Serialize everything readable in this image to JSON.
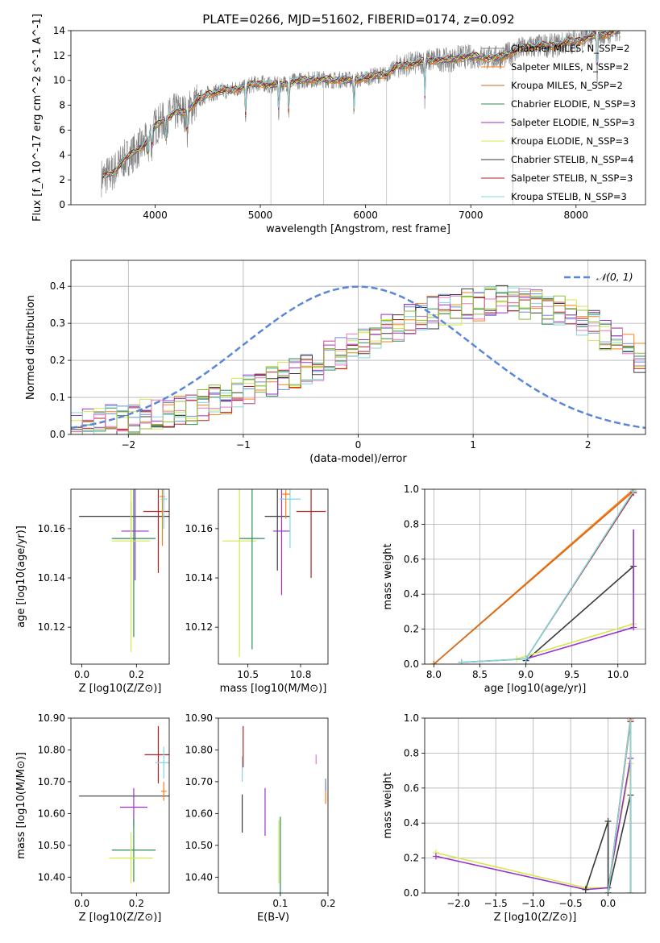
{
  "chart_data": [
    {
      "id": "spectrum",
      "type": "line",
      "title": "PLATE=0266, MJD=51602, FIBERID=0174, z=0.092",
      "xlabel": "wavelength [Angstrom, rest frame]",
      "ylabel": "Flux [f_λ 10^-17 erg cm^-2 s^-1 A^-1]",
      "xlim": [
        3200,
        8660
      ],
      "ylim": [
        0,
        14
      ],
      "xticks": [
        4000,
        5000,
        6000,
        7000,
        8000
      ],
      "yticks": [
        0,
        2,
        4,
        6,
        8,
        10,
        12,
        14
      ],
      "legend_position": "right",
      "continuum": {
        "x": [
          3500,
          3600,
          3700,
          3800,
          3900,
          4000,
          4100,
          4200,
          4300,
          4400,
          4500,
          4600,
          4700,
          4800,
          4900,
          5000,
          5100,
          5200,
          5300,
          5400,
          5500,
          5600,
          5700,
          5800,
          5900,
          6000,
          6100,
          6200,
          6300,
          6400,
          6500,
          6600,
          6700,
          6800,
          6900,
          7000,
          7100,
          7200,
          7300,
          7400,
          7500,
          7600,
          7700,
          7800,
          7900,
          8000,
          8100,
          8200,
          8300,
          8400
        ],
        "y": [
          2.2,
          2.6,
          3.6,
          4.2,
          4.9,
          6.3,
          6.9,
          7.5,
          7.4,
          8.4,
          8.9,
          9.1,
          9.2,
          9.4,
          9.6,
          9.8,
          9.6,
          9.7,
          9.9,
          10.0,
          10.1,
          10.1,
          10.0,
          10.1,
          10.0,
          10.2,
          10.4,
          10.5,
          11.1,
          11.3,
          11.4,
          11.6,
          11.7,
          11.6,
          11.9,
          11.9,
          11.9,
          11.8,
          11.9,
          12.3,
          12.6,
          12.7,
          12.8,
          12.8,
          13.0,
          13.2,
          13.4,
          13.6,
          13.8,
          14.0
        ]
      },
      "data_series_color": "#808080",
      "model_series": [
        {
          "name": "Chabrier MILES, N_SSP=2",
          "color": "#808080"
        },
        {
          "name": "Salpeter MILES, N_SSP=2",
          "color": "#ff7f0e"
        },
        {
          "name": "Kroupa MILES, N_SSP=2",
          "color": "#d2691e"
        },
        {
          "name": "Chabrier ELODIE, N_SSP=3",
          "color": "#2e8b57"
        },
        {
          "name": "Salpeter ELODIE, N_SSP=3",
          "color": "#9932cc"
        },
        {
          "name": "Kroupa ELODIE, N_SSP=3",
          "color": "#d4e84c"
        },
        {
          "name": "Chabrier STELIB, N_SSP=4",
          "color": "#3a3a3a"
        },
        {
          "name": "Salpeter STELIB, N_SSP=3",
          "color": "#b22222"
        },
        {
          "name": "Kroupa STELIB, N_SSP=3",
          "color": "#7fd6e0"
        }
      ],
      "absorption_lines": [
        3934,
        3969,
        4102,
        4304,
        4861,
        5175,
        5270,
        5890,
        6563,
        8200
      ],
      "masked_spikes": [
        5100,
        5600,
        6200,
        6800,
        7400
      ]
    },
    {
      "id": "residuals",
      "type": "histogram",
      "xlabel": "(data-model)/error",
      "ylabel": "Normed distribution",
      "xlim": [
        -2.5,
        2.5
      ],
      "ylim": [
        0,
        0.47
      ],
      "xticks": [
        -2,
        -1,
        0,
        1,
        2
      ],
      "yticks": [
        0.0,
        0.1,
        0.2,
        0.3,
        0.4
      ],
      "grid": true,
      "legend_position": "top-right",
      "gaussian": {
        "name": "𝒩(0, 1)",
        "mean": 0,
        "sigma": 1,
        "color": "#5b87d8"
      },
      "bin_edges_start": -2.5,
      "bin_width": 0.1,
      "base_profile": [
        0.03,
        0.03,
        0.03,
        0.04,
        0.04,
        0.04,
        0.05,
        0.05,
        0.06,
        0.06,
        0.07,
        0.08,
        0.09,
        0.1,
        0.11,
        0.12,
        0.13,
        0.14,
        0.15,
        0.16,
        0.18,
        0.19,
        0.21,
        0.22,
        0.24,
        0.25,
        0.27,
        0.28,
        0.29,
        0.31,
        0.32,
        0.33,
        0.34,
        0.34,
        0.35,
        0.35,
        0.36,
        0.36,
        0.36,
        0.35,
        0.35,
        0.34,
        0.33,
        0.32,
        0.31,
        0.29,
        0.27,
        0.25,
        0.23,
        0.21
      ],
      "series_colors": [
        "#6a8fd6",
        "#ff7f0e",
        "#2e8b57",
        "#9932cc",
        "#d4e84c",
        "#3a3a3a",
        "#b22222",
        "#7fd6e0",
        "#e377c2",
        "#8fbc3f"
      ]
    },
    {
      "id": "z-age",
      "type": "errorbar",
      "xlabel": "Z [log10(Z/Z⊙)]",
      "ylabel": "age  [log10(age/yr)]",
      "xlim": [
        -0.04,
        0.32
      ],
      "ylim": [
        10.105,
        10.176
      ],
      "xticks": [
        0.0,
        0.2
      ],
      "yticks": [
        10.12,
        10.14,
        10.16
      ],
      "points": [
        {
          "x": 0.18,
          "y": 10.165,
          "xerr": 0.19,
          "yerr": 0.006,
          "color": "#3a3a3a"
        },
        {
          "x": 0.195,
          "y": 10.159,
          "xerr": 0.05,
          "yerr": 0.02,
          "color": "#9932cc"
        },
        {
          "x": 0.19,
          "y": 10.156,
          "xerr": 0.08,
          "yerr": 0.04,
          "color": "#2e8b57"
        },
        {
          "x": 0.18,
          "y": 10.155,
          "xerr": 0.07,
          "yerr": 0.045,
          "color": "#d4e84c"
        },
        {
          "x": 0.28,
          "y": 10.167,
          "xerr": 0.055,
          "yerr": 0.025,
          "color": "#b22222"
        },
        {
          "x": 0.295,
          "y": 10.173,
          "xerr": 0.01,
          "yerr": 0.02,
          "color": "#ff7f0e"
        },
        {
          "x": 0.3,
          "y": 10.172,
          "xerr": 0.012,
          "yerr": 0.012,
          "color": "#7fd6e0"
        }
      ]
    },
    {
      "id": "mass-age",
      "type": "errorbar",
      "xlabel": "mass [log10(M/M⊙)]",
      "ylabel": "",
      "xlim": [
        10.36,
        10.88
      ],
      "ylim": [
        10.105,
        10.176
      ],
      "xticks": [
        10.5,
        10.75
      ],
      "yticks": [
        10.12,
        10.14,
        10.16
      ],
      "points": [
        {
          "x": 10.46,
          "y": 10.155,
          "xerr": 0.08,
          "yerr": 0.047,
          "color": "#d4e84c"
        },
        {
          "x": 10.52,
          "y": 10.156,
          "xerr": 0.06,
          "yerr": 0.045,
          "color": "#2e8b57"
        },
        {
          "x": 10.64,
          "y": 10.165,
          "xerr": 0.06,
          "yerr": 0.022,
          "color": "#3a3a3a"
        },
        {
          "x": 10.66,
          "y": 10.159,
          "xerr": 0.04,
          "yerr": 0.026,
          "color": "#9932cc"
        },
        {
          "x": 10.7,
          "y": 10.172,
          "xerr": 0.05,
          "yerr": 0.02,
          "color": "#7fd6e0"
        },
        {
          "x": 10.68,
          "y": 10.174,
          "xerr": 0.02,
          "yerr": 0.01,
          "color": "#ff7f0e"
        },
        {
          "x": 10.8,
          "y": 10.167,
          "xerr": 0.07,
          "yerr": 0.027,
          "color": "#b22222"
        }
      ]
    },
    {
      "id": "age-weight",
      "type": "line",
      "xlabel": "age  [log10(age/yr)]",
      "ylabel": "mass weight",
      "xlim": [
        7.9,
        10.3
      ],
      "ylim": [
        0,
        1.0
      ],
      "xticks": [
        8.0,
        8.5,
        9.0,
        9.5,
        10.0
      ],
      "yticks": [
        0.0,
        0.2,
        0.4,
        0.6,
        0.8,
        1.0
      ],
      "grid": true,
      "series": [
        {
          "color": "#ff7f0e",
          "x": [
            8.0,
            10.17
          ],
          "y": [
            0.0,
            1.0
          ]
        },
        {
          "color": "#d2691e",
          "x": [
            8.0,
            10.17
          ],
          "y": [
            0.0,
            0.99
          ]
        },
        {
          "color": "#3a3a3a",
          "x": [
            9.0,
            10.17
          ],
          "y": [
            0.02,
            0.56
          ]
        },
        {
          "color": "#9932cc",
          "x": [
            9.0,
            10.17
          ],
          "y": [
            0.03,
            0.21
          ]
        },
        {
          "color": "#d4e84c",
          "x": [
            8.9,
            10.17
          ],
          "y": [
            0.03,
            0.23
          ]
        },
        {
          "color": "#b22222",
          "x": [
            8.3,
            9.0,
            10.17
          ],
          "y": [
            0.01,
            0.03,
            0.98
          ]
        },
        {
          "color": "#7fd6e0",
          "x": [
            8.3,
            9.0,
            10.17
          ],
          "y": [
            0.01,
            0.03,
            0.99
          ]
        }
      ],
      "vbars": [
        {
          "color": "#3a3a3a",
          "x": 10.17,
          "y0": 0.41,
          "y1": 0.56
        },
        {
          "color": "#d4e84c",
          "x": 10.17,
          "y0": 0.23,
          "y1": 0.74
        },
        {
          "color": "#9932cc",
          "x": 10.17,
          "y0": 0.21,
          "y1": 0.77
        }
      ]
    },
    {
      "id": "z-mass",
      "type": "errorbar",
      "xlabel": "Z [log10(Z/Z⊙)]",
      "ylabel": "mass [log10(M/M⊙)]",
      "xlim": [
        -0.04,
        0.32
      ],
      "ylim": [
        10.35,
        10.9
      ],
      "xticks": [
        0.0,
        0.2
      ],
      "yticks": [
        10.4,
        10.5,
        10.6,
        10.7,
        10.8,
        10.9
      ],
      "points": [
        {
          "x": 0.18,
          "y": 10.655,
          "xerr": 0.19,
          "yerr": 0.0,
          "color": "#3a3a3a"
        },
        {
          "x": 0.19,
          "y": 10.62,
          "xerr": 0.05,
          "yerr": 0.06,
          "color": "#9932cc"
        },
        {
          "x": 0.19,
          "y": 10.485,
          "xerr": 0.08,
          "yerr": 0.1,
          "color": "#2e8b57"
        },
        {
          "x": 0.18,
          "y": 10.46,
          "xerr": 0.08,
          "yerr": 0.08,
          "color": "#d4e84c"
        },
        {
          "x": 0.28,
          "y": 10.785,
          "xerr": 0.05,
          "yerr": 0.09,
          "color": "#b22222"
        },
        {
          "x": 0.3,
          "y": 10.76,
          "xerr": 0.03,
          "yerr": 0.05,
          "color": "#7fd6e0"
        },
        {
          "x": 0.3,
          "y": 10.67,
          "xerr": 0.01,
          "yerr": 0.03,
          "color": "#ff7f0e"
        }
      ]
    },
    {
      "id": "ebv-mass",
      "type": "errorbar",
      "xlabel": "E(B-V)",
      "ylabel": "",
      "xlim": [
        -0.03,
        0.2
      ],
      "ylim": [
        10.35,
        10.9
      ],
      "xticks": [
        0.1,
        0.2
      ],
      "yticks": [
        10.4,
        10.5,
        10.6,
        10.7,
        10.8,
        10.9
      ],
      "points": [
        {
          "x": 0.02,
          "y": 10.6,
          "xerr": 0.0,
          "yerr": 0.06,
          "color": "#3a3a3a"
        },
        {
          "x": 0.02,
          "y": 10.74,
          "xerr": 0.0,
          "yerr": 0.04,
          "color": "#7fd6e0"
        },
        {
          "x": 0.022,
          "y": 10.81,
          "xerr": 0.0,
          "yerr": 0.065,
          "color": "#b22222"
        },
        {
          "x": 0.068,
          "y": 10.605,
          "xerr": 0.0,
          "yerr": 0.075,
          "color": "#9932cc"
        },
        {
          "x": 0.097,
          "y": 10.48,
          "xerr": 0.0,
          "yerr": 0.1,
          "color": "#d4e84c"
        },
        {
          "x": 0.1,
          "y": 10.47,
          "xerr": 0.0,
          "yerr": 0.12,
          "color": "#2e8b57"
        },
        {
          "x": 0.175,
          "y": 10.77,
          "xerr": 0.0,
          "yerr": 0.015,
          "color": "#e377c2"
        },
        {
          "x": 0.195,
          "y": 10.665,
          "xerr": 0.0,
          "yerr": 0.035,
          "color": "#ff7f0e"
        },
        {
          "x": 0.195,
          "y": 10.69,
          "xerr": 0.0,
          "yerr": 0.02,
          "color": "#6a8fd6"
        }
      ]
    },
    {
      "id": "z-weight",
      "type": "line",
      "xlabel": "Z [log10(Z/Z⊙)]",
      "ylabel": "mass weight",
      "xlim": [
        -2.45,
        0.5
      ],
      "ylim": [
        0,
        1.0
      ],
      "xticks": [
        -2.0,
        -1.5,
        -1.0,
        -0.5,
        0.0
      ],
      "yticks": [
        0.0,
        0.2,
        0.4,
        0.6,
        0.8,
        1.0
      ],
      "grid": true,
      "series": [
        {
          "color": "#d4e84c",
          "x": [
            -2.3,
            -0.3,
            0.0,
            0.3
          ],
          "y": [
            0.23,
            0.03,
            0.03,
            0.74
          ]
        },
        {
          "color": "#9932cc",
          "x": [
            -2.3,
            -0.3,
            0.0,
            0.3
          ],
          "y": [
            0.21,
            0.02,
            0.03,
            0.77
          ]
        },
        {
          "color": "#3a3a3a",
          "x": [
            -0.3,
            0.0,
            0.0,
            0.3
          ],
          "y": [
            0.02,
            0.41,
            0.0,
            0.56
          ]
        },
        {
          "color": "#ff7f0e",
          "x": [
            0.0,
            0.3,
            0.3
          ],
          "y": [
            0.0,
            1.0,
            0.0
          ]
        },
        {
          "color": "#d2691e",
          "x": [
            0.0,
            0.3
          ],
          "y": [
            0.0,
            0.99
          ]
        },
        {
          "color": "#b22222",
          "x": [
            0.0,
            0.3
          ],
          "y": [
            0.0,
            0.98
          ]
        },
        {
          "color": "#7fd6e0",
          "x": [
            0.0,
            0.3
          ],
          "y": [
            0.0,
            0.99
          ]
        }
      ],
      "vbars": [
        {
          "color": "#3a3a3a",
          "x": 0.3,
          "y0": 0.0,
          "y1": 0.56
        },
        {
          "color": "#ff7f0e",
          "x": 0.3,
          "y0": 0.0,
          "y1": 1.0
        },
        {
          "color": "#7fd6e0",
          "x": 0.3,
          "y0": 0.0,
          "y1": 0.99
        }
      ]
    }
  ]
}
